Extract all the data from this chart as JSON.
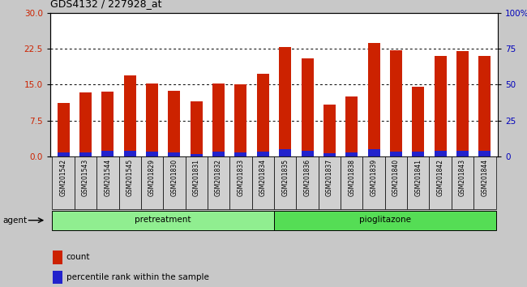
{
  "title": "GDS4132 / 227928_at",
  "samples": [
    "GSM201542",
    "GSM201543",
    "GSM201544",
    "GSM201545",
    "GSM201829",
    "GSM201830",
    "GSM201831",
    "GSM201832",
    "GSM201833",
    "GSM201834",
    "GSM201835",
    "GSM201836",
    "GSM201837",
    "GSM201838",
    "GSM201839",
    "GSM201840",
    "GSM201841",
    "GSM201842",
    "GSM201843",
    "GSM201844"
  ],
  "red_values": [
    11.2,
    13.3,
    13.5,
    17.0,
    15.2,
    13.7,
    11.5,
    15.2,
    15.0,
    17.2,
    22.8,
    20.5,
    10.8,
    12.5,
    23.7,
    22.2,
    14.5,
    21.0,
    22.0,
    21.0
  ],
  "blue_values": [
    0.8,
    0.8,
    1.2,
    1.2,
    1.0,
    0.8,
    0.5,
    1.0,
    0.8,
    1.0,
    1.5,
    1.2,
    0.7,
    0.8,
    1.5,
    1.0,
    1.0,
    1.2,
    1.2,
    1.2
  ],
  "group_labels": [
    "pretreatment",
    "pioglitazone"
  ],
  "group_split": 10,
  "group_color_pre": "#90ee90",
  "group_color_pio": "#55dd55",
  "agent_label": "agent",
  "yticks_left": [
    0,
    7.5,
    15,
    22.5,
    30
  ],
  "yticks_right": [
    0,
    25,
    50,
    75,
    100
  ],
  "ylim_left": [
    0,
    30
  ],
  "ylim_right": [
    0,
    100
  ],
  "bar_color_red": "#cc2200",
  "bar_color_blue": "#2222cc",
  "bar_width": 0.55,
  "bg_color": "#c8c8c8",
  "plot_bg": "#ffffff",
  "legend_items": [
    "count",
    "percentile rank within the sample"
  ],
  "legend_colors": [
    "#cc2200",
    "#2222cc"
  ],
  "cell_bg": "#d0d0d0",
  "cell_line": "#aaaaaa"
}
